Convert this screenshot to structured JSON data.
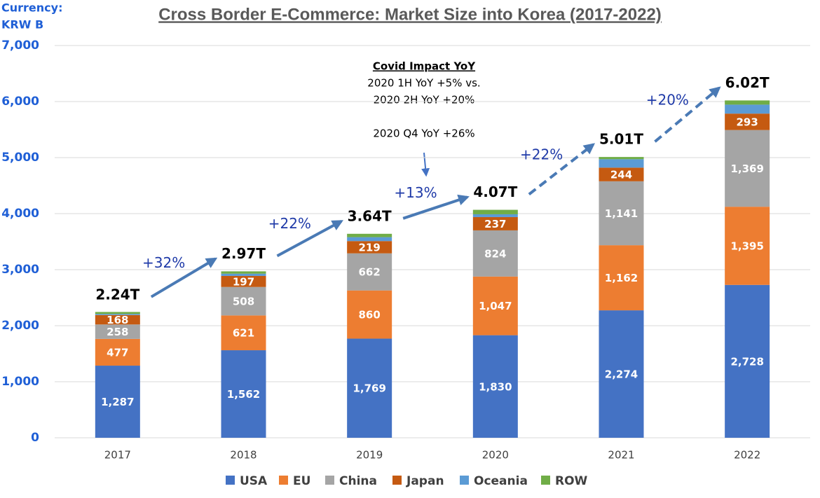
{
  "chart_data": {
    "type": "stacked_bar",
    "title": "Cross Border E-Commerce: Market Size into Korea (2017-2022)",
    "y_label": [
      "Currency:",
      "KRW B"
    ],
    "categories": [
      "2017",
      "2018",
      "2019",
      "2020",
      "2021",
      "2022"
    ],
    "series": [
      {
        "name": "USA",
        "color": "#4472c4",
        "values": [
          1287,
          1562,
          1769,
          1830,
          2274,
          2728
        ],
        "value_labels": [
          "1,287",
          "1,562",
          "1,769",
          "1,830",
          "2,274",
          "2,728"
        ]
      },
      {
        "name": "EU",
        "color": "#ed7d31",
        "values": [
          477,
          621,
          860,
          1047,
          1162,
          1395
        ],
        "value_labels": [
          "477",
          "621",
          "860",
          "1,047",
          "1,162",
          "1,395"
        ]
      },
      {
        "name": "China",
        "color": "#a5a5a5",
        "values": [
          258,
          508,
          662,
          824,
          1141,
          1369
        ],
        "value_labels": [
          "258",
          "508",
          "662",
          "824",
          "1,141",
          "1,369"
        ]
      },
      {
        "name": "Japan",
        "color": "#c55a11",
        "values": [
          168,
          197,
          219,
          237,
          244,
          293
        ],
        "value_labels": [
          "168",
          "197",
          "219",
          "237",
          "244",
          "293"
        ]
      },
      {
        "name": "Oceania",
        "color": "#5b9bd5",
        "values": [
          20,
          40,
          70,
          50,
          150,
          160
        ]
      },
      {
        "name": "ROW",
        "color": "#70ad47",
        "values": [
          35,
          42,
          60,
          80,
          40,
          75
        ]
      }
    ],
    "totals": {
      "values": [
        2240,
        2970,
        3640,
        4070,
        5010,
        6020
      ],
      "value_labels": [
        "2.24T",
        "2.97T",
        "3.64T",
        "4.07T",
        "5.01T",
        "6.02T"
      ]
    },
    "growth": {
      "values": [
        32,
        22,
        13,
        22,
        20
      ],
      "value_labels": [
        "+32%",
        "+22%",
        "+13%",
        "+22%",
        "+20%"
      ],
      "dashed": [
        false,
        false,
        false,
        true,
        true
      ]
    },
    "note": {
      "title": "Covid Impact YoY",
      "lines": [
        "2020 1H YoY +5% vs.",
        "2020 2H YoY +20%",
        "2020 Q4 YoY +26%"
      ]
    },
    "ylim": [
      0,
      7000
    ],
    "yticks": [
      0,
      {
        "value": 1000,
        "label": "1,000"
      },
      {
        "value": 2000,
        "label": "2,000"
      },
      {
        "value": 3000,
        "label": "3,000"
      },
      {
        "value": 4000,
        "label": "4,000"
      },
      {
        "value": 5000,
        "label": "5,000"
      },
      {
        "value": 6000,
        "label": "6,000"
      },
      {
        "value": 7000,
        "label": "7,000"
      }
    ],
    "grid": true,
    "legend": "bottom"
  }
}
